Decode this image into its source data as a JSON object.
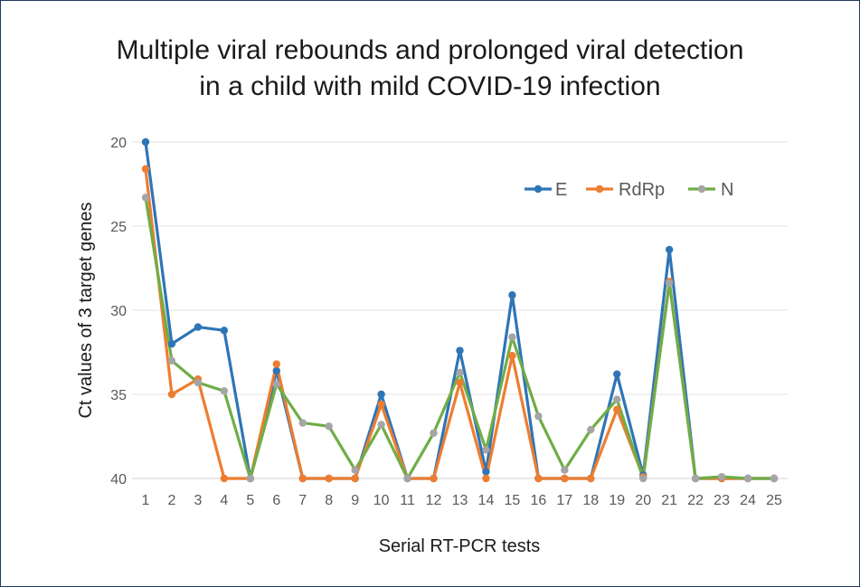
{
  "chart_data": {
    "type": "line",
    "title_lines": [
      "Multiple viral rebounds and prolonged viral detection",
      "in a child with mild COVID-19 infection"
    ],
    "xlabel": "Serial RT-PCR tests",
    "ylabel": "Ct values of 3 target genes",
    "x": [
      1,
      2,
      3,
      4,
      5,
      6,
      7,
      8,
      9,
      10,
      11,
      12,
      13,
      14,
      15,
      16,
      17,
      18,
      19,
      20,
      21,
      22,
      23,
      24,
      25
    ],
    "ylim": [
      20,
      40
    ],
    "y_inverted": true,
    "yticks": [
      20,
      25,
      30,
      35,
      40
    ],
    "grid": "horizontal",
    "legend_position": "top-right",
    "series": [
      {
        "name": "E",
        "color": "#2e75b6",
        "values": [
          20,
          32,
          31,
          31.2,
          40,
          33.6,
          40,
          40,
          40,
          35,
          40,
          40,
          32.4,
          39.6,
          29.1,
          40,
          40,
          40,
          33.8,
          39.8,
          26.4,
          40,
          40,
          40,
          40
        ]
      },
      {
        "name": "RdRp",
        "color": "#ed7d31",
        "values": [
          21.6,
          35,
          34.1,
          40,
          40,
          33.2,
          40,
          40,
          40,
          35.6,
          40,
          40,
          34.3,
          40,
          32.7,
          40,
          40,
          40,
          35.9,
          39.9,
          28.3,
          40,
          40,
          40,
          40
        ]
      },
      {
        "name": "N",
        "color": "#70ad47",
        "marker_color": "#a5a5a5",
        "values": [
          23.3,
          33,
          34.3,
          34.8,
          40,
          34.4,
          36.7,
          36.9,
          39.5,
          36.8,
          40,
          37.3,
          33.7,
          38.3,
          31.6,
          36.3,
          39.5,
          37.1,
          35.3,
          40,
          28.4,
          40,
          39.9,
          40,
          40
        ]
      }
    ]
  }
}
